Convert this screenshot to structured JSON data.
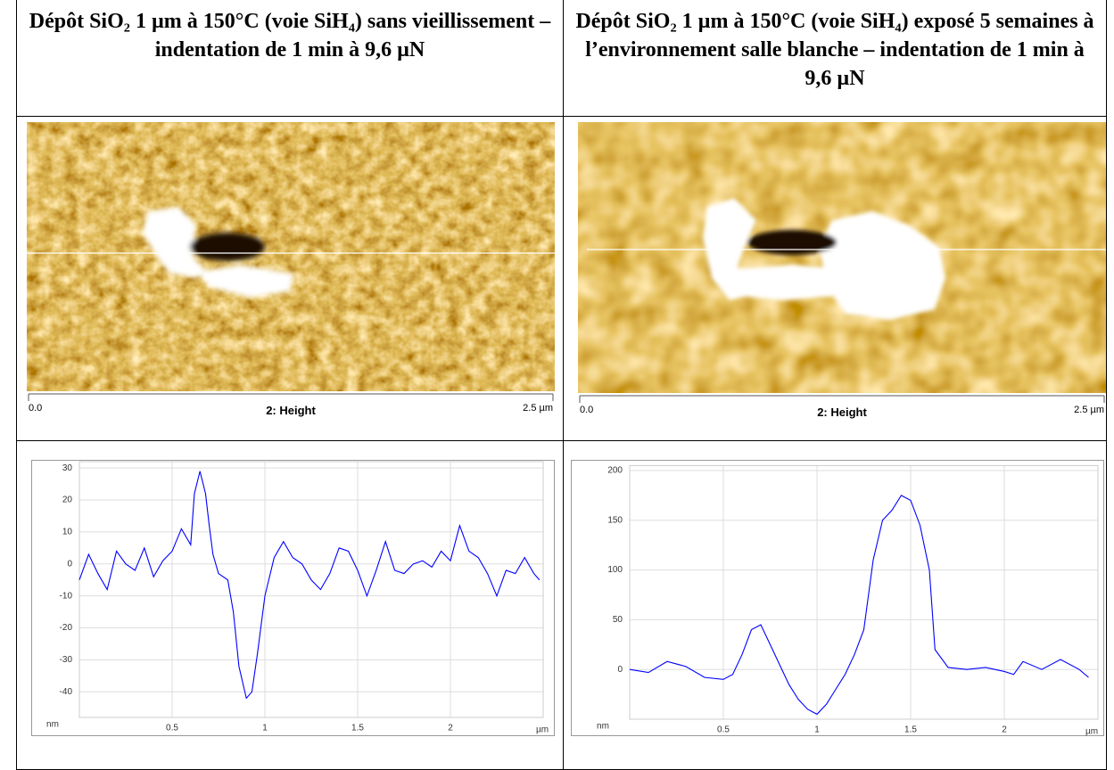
{
  "headers": [
    "Dépôt SiO₂ 1 µm à 150°C (voie SiH₄) sans vieillissement – indentation de 1 min à 9,6 µN",
    "Dépôt SiO₂ 1 µm à 150°C (voie SiH₄) exposé 5 semaines à l’environnement salle blanche – indentation de 1 min à 9,6 µN"
  ],
  "images": [
    {
      "scale_start": "0.0",
      "channel": "2: Height",
      "scale_end": "2.5 µm"
    },
    {
      "scale_start": "0.0",
      "channel": "2: Height",
      "scale_end": "2.5 µm"
    }
  ],
  "chart_data": [
    {
      "type": "line",
      "x_label": "µm",
      "y_label": "nm",
      "color": "#0000ff",
      "grid": true,
      "x": [
        0,
        0.05,
        0.1,
        0.15,
        0.2,
        0.25,
        0.3,
        0.35,
        0.4,
        0.45,
        0.5,
        0.55,
        0.6,
        0.62,
        0.65,
        0.68,
        0.7,
        0.72,
        0.75,
        0.8,
        0.83,
        0.86,
        0.9,
        0.93,
        0.96,
        1.0,
        1.05,
        1.1,
        1.15,
        1.2,
        1.25,
        1.3,
        1.35,
        1.4,
        1.45,
        1.5,
        1.55,
        1.6,
        1.65,
        1.7,
        1.75,
        1.8,
        1.85,
        1.9,
        1.95,
        2.0,
        2.05,
        2.1,
        2.15,
        2.2,
        2.25,
        2.3,
        2.35,
        2.4,
        2.45,
        2.48
      ],
      "values": [
        -5,
        3,
        -3,
        -8,
        4,
        0,
        -2,
        5,
        -4,
        1,
        4,
        11,
        6,
        22,
        29,
        22,
        12,
        3,
        -3,
        -5,
        -15,
        -32,
        -42,
        -40,
        -28,
        -10,
        2,
        7,
        2,
        0,
        -5,
        -8,
        -3,
        5,
        4,
        -2,
        -10,
        -2,
        7,
        -2,
        -3,
        0,
        1,
        -1,
        4,
        1,
        12,
        4,
        2,
        -3,
        -10,
        -2,
        -3,
        2,
        -3,
        -5
      ],
      "xlim": [
        0,
        2.5
      ],
      "ylim": [
        -48,
        32
      ],
      "xticks": [
        0.5,
        1,
        1.5,
        2
      ],
      "yticks": [
        -40,
        -30,
        -20,
        -10,
        0,
        10,
        20,
        30
      ]
    },
    {
      "type": "line",
      "x_label": "µm",
      "y_label": "nm",
      "color": "#0000ff",
      "grid": true,
      "x": [
        0,
        0.1,
        0.2,
        0.3,
        0.4,
        0.5,
        0.55,
        0.6,
        0.65,
        0.7,
        0.75,
        0.8,
        0.85,
        0.9,
        0.95,
        1.0,
        1.05,
        1.1,
        1.15,
        1.2,
        1.25,
        1.3,
        1.35,
        1.4,
        1.45,
        1.5,
        1.55,
        1.6,
        1.63,
        1.7,
        1.8,
        1.9,
        2.0,
        2.05,
        2.1,
        2.2,
        2.3,
        2.4,
        2.45
      ],
      "values": [
        0,
        -3,
        8,
        3,
        -8,
        -10,
        -5,
        15,
        40,
        45,
        25,
        5,
        -15,
        -30,
        -40,
        -45,
        -35,
        -20,
        -5,
        15,
        40,
        110,
        150,
        160,
        175,
        170,
        145,
        100,
        20,
        2,
        0,
        2,
        -2,
        -5,
        8,
        0,
        10,
        0,
        -8
      ],
      "xlim": [
        0,
        2.5
      ],
      "ylim": [
        -50,
        205
      ],
      "xticks": [
        0.5,
        1,
        1.5,
        2
      ],
      "yticks": [
        0,
        50,
        100,
        150,
        200
      ]
    }
  ]
}
